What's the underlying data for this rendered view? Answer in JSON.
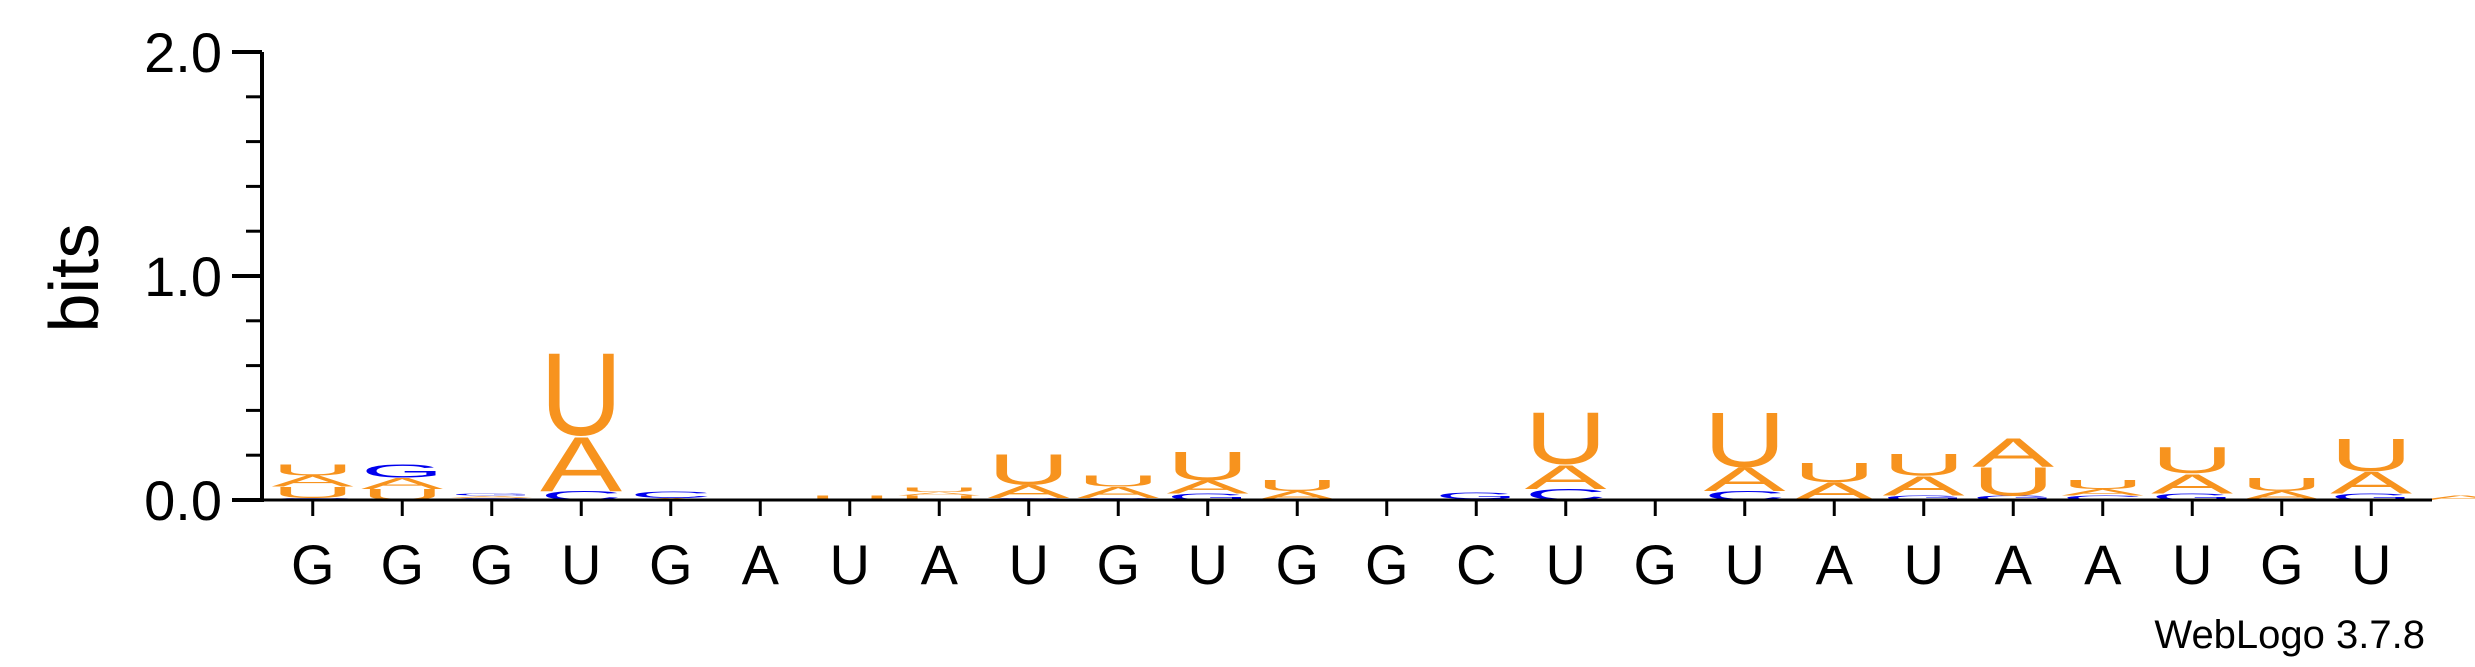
{
  "chart_data": {
    "type": "sequence-logo",
    "ylabel": "bits",
    "ylim": [
      0,
      2.0
    ],
    "yticks": [
      "0.0",
      "1.0",
      "2.0"
    ],
    "colors": {
      "A": "#f7931e",
      "U": "#f7931e",
      "G": "#0000ee",
      "C": "#0000ee"
    },
    "credit": "WebLogo 3.7.8",
    "positions": [
      {
        "label": "G",
        "stack": [
          {
            "letter": "C",
            "bits": 0.01
          },
          {
            "letter": "U",
            "bits": 0.05
          },
          {
            "letter": "A",
            "bits": 0.05
          },
          {
            "letter": "U",
            "bits": 0.05
          }
        ]
      },
      {
        "label": "G",
        "stack": [
          {
            "letter": "U",
            "bits": 0.05
          },
          {
            "letter": "A",
            "bits": 0.05
          },
          {
            "letter": "G",
            "bits": 0.06
          }
        ]
      },
      {
        "label": "G",
        "stack": [
          {
            "letter": "C",
            "bits": 0.01
          },
          {
            "letter": "A",
            "bits": 0.01
          },
          {
            "letter": "G",
            "bits": 0.01
          }
        ]
      },
      {
        "label": "U",
        "stack": [
          {
            "letter": "C",
            "bits": 0.04
          },
          {
            "letter": "A",
            "bits": 0.25
          },
          {
            "letter": "U",
            "bits": 0.38
          }
        ]
      },
      {
        "label": "G",
        "stack": [
          {
            "letter": "A",
            "bits": 0.01
          },
          {
            "letter": "C",
            "bits": 0.03
          }
        ]
      },
      {
        "label": "A",
        "stack": [
          {
            "letter": "U",
            "bits": 0.005
          }
        ]
      },
      {
        "label": "U",
        "stack": [
          {
            "letter": "U",
            "bits": 0.02
          }
        ]
      },
      {
        "label": "A",
        "stack": [
          {
            "letter": "U",
            "bits": 0.02
          },
          {
            "letter": "A",
            "bits": 0.015
          },
          {
            "letter": "U",
            "bits": 0.02
          }
        ]
      },
      {
        "label": "U",
        "stack": [
          {
            "letter": "G",
            "bits": 0.01
          },
          {
            "letter": "A",
            "bits": 0.06
          },
          {
            "letter": "U",
            "bits": 0.14
          }
        ]
      },
      {
        "label": "G",
        "stack": [
          {
            "letter": "G",
            "bits": 0.01
          },
          {
            "letter": "A",
            "bits": 0.05
          },
          {
            "letter": "U",
            "bits": 0.05
          }
        ]
      },
      {
        "label": "U",
        "stack": [
          {
            "letter": "G",
            "bits": 0.03
          },
          {
            "letter": "A",
            "bits": 0.06
          },
          {
            "letter": "U",
            "bits": 0.13
          }
        ]
      },
      {
        "label": "G",
        "stack": [
          {
            "letter": "A",
            "bits": 0.04
          },
          {
            "letter": "U",
            "bits": 0.05
          }
        ]
      },
      {
        "label": "G",
        "stack": []
      },
      {
        "label": "C",
        "stack": [
          {
            "letter": "A",
            "bits": 0.005
          },
          {
            "letter": "G",
            "bits": 0.03
          }
        ]
      },
      {
        "label": "U",
        "stack": [
          {
            "letter": "C",
            "bits": 0.05
          },
          {
            "letter": "A",
            "bits": 0.11
          },
          {
            "letter": "U",
            "bits": 0.24
          }
        ]
      },
      {
        "label": "G",
        "stack": []
      },
      {
        "label": "U",
        "stack": [
          {
            "letter": "C",
            "bits": 0.04
          },
          {
            "letter": "A",
            "bits": 0.11
          },
          {
            "letter": "U",
            "bits": 0.25
          }
        ]
      },
      {
        "label": "A",
        "stack": [
          {
            "letter": "A",
            "bits": 0.08
          },
          {
            "letter": "U",
            "bits": 0.09
          }
        ]
      },
      {
        "label": "U",
        "stack": [
          {
            "letter": "G",
            "bits": 0.02
          },
          {
            "letter": "A",
            "bits": 0.09
          },
          {
            "letter": "U",
            "bits": 0.1
          }
        ]
      },
      {
        "label": "A",
        "stack": [
          {
            "letter": "G",
            "bits": 0.02
          },
          {
            "letter": "U",
            "bits": 0.13
          },
          {
            "letter": "A",
            "bits": 0.13
          }
        ]
      },
      {
        "label": "A",
        "stack": [
          {
            "letter": "C",
            "bits": 0.02
          },
          {
            "letter": "A",
            "bits": 0.03
          },
          {
            "letter": "U",
            "bits": 0.04
          }
        ]
      },
      {
        "label": "U",
        "stack": [
          {
            "letter": "G",
            "bits": 0.03
          },
          {
            "letter": "A",
            "bits": 0.09
          },
          {
            "letter": "U",
            "bits": 0.12
          }
        ]
      },
      {
        "label": "G",
        "stack": [
          {
            "letter": "A",
            "bits": 0.04
          },
          {
            "letter": "U",
            "bits": 0.06
          }
        ]
      },
      {
        "label": "U",
        "stack": [
          {
            "letter": "G",
            "bits": 0.03
          },
          {
            "letter": "A",
            "bits": 0.1
          },
          {
            "letter": "U",
            "bits": 0.15
          }
        ]
      },
      {
        "label": "",
        "stack": [
          {
            "letter": "A",
            "bits": 0.02
          }
        ]
      }
    ]
  }
}
